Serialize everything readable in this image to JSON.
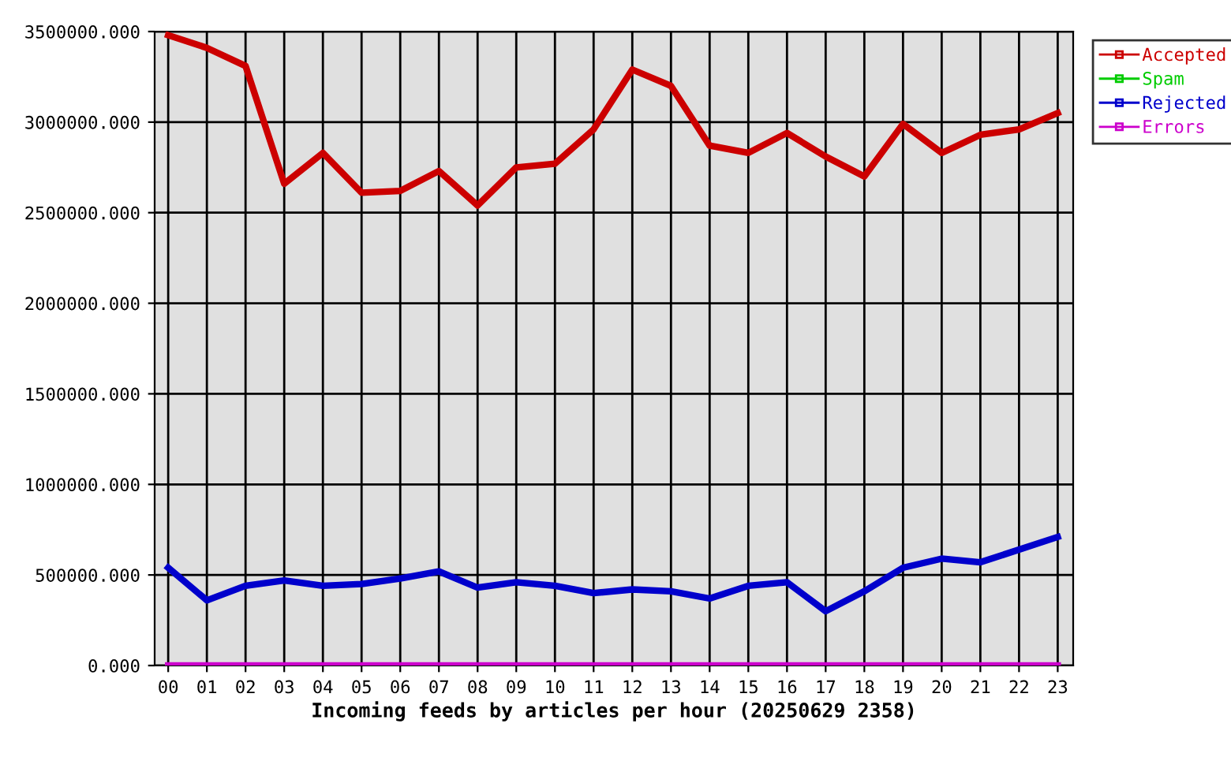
{
  "chart_data": {
    "type": "line",
    "xlabel": "Incoming feeds by articles per hour (20250629 2358)",
    "categories": [
      "00",
      "01",
      "02",
      "03",
      "04",
      "05",
      "06",
      "07",
      "08",
      "09",
      "10",
      "11",
      "12",
      "13",
      "14",
      "15",
      "16",
      "17",
      "18",
      "19",
      "20",
      "21",
      "22",
      "23"
    ],
    "series": [
      {
        "name": "Accepted",
        "color": "#cc0000",
        "values": [
          3480000,
          3410000,
          3310000,
          2660000,
          2830000,
          2610000,
          2620000,
          2730000,
          2540000,
          2750000,
          2770000,
          2960000,
          3290000,
          3200000,
          2870000,
          2830000,
          2940000,
          2810000,
          2700000,
          2990000,
          2830000,
          2930000,
          2960000,
          3050000
        ]
      },
      {
        "name": "Spam",
        "color": "#00cc00",
        "values": [
          null,
          null,
          null,
          null,
          null,
          null,
          null,
          null,
          null,
          null,
          null,
          null,
          null,
          null,
          null,
          null,
          null,
          null,
          null,
          null,
          null,
          null,
          null,
          null
        ]
      },
      {
        "name": "Rejected",
        "color": "#0000cc",
        "values": [
          540000,
          360000,
          440000,
          470000,
          440000,
          450000,
          480000,
          520000,
          430000,
          460000,
          440000,
          400000,
          420000,
          410000,
          370000,
          440000,
          460000,
          300000,
          410000,
          540000,
          590000,
          570000,
          640000,
          710000
        ]
      },
      {
        "name": "Errors",
        "color": "#cc00cc",
        "values": [
          0,
          0,
          0,
          0,
          0,
          0,
          0,
          0,
          0,
          0,
          0,
          0,
          0,
          0,
          0,
          0,
          0,
          0,
          0,
          0,
          0,
          0,
          0,
          0
        ]
      }
    ],
    "ylim": [
      0,
      3500000
    ],
    "yticks": [
      {
        "value": 0,
        "label": "0.000"
      },
      {
        "value": 500000,
        "label": "500000.000"
      },
      {
        "value": 1000000,
        "label": "1000000.000"
      },
      {
        "value": 1500000,
        "label": "1500000.000"
      },
      {
        "value": 2000000,
        "label": "2000000.000"
      },
      {
        "value": 2500000,
        "label": "2500000.000"
      },
      {
        "value": 3000000,
        "label": "3000000.000"
      },
      {
        "value": 3500000,
        "label": "3500000.000"
      }
    ],
    "grid": true,
    "legend": "top right"
  }
}
